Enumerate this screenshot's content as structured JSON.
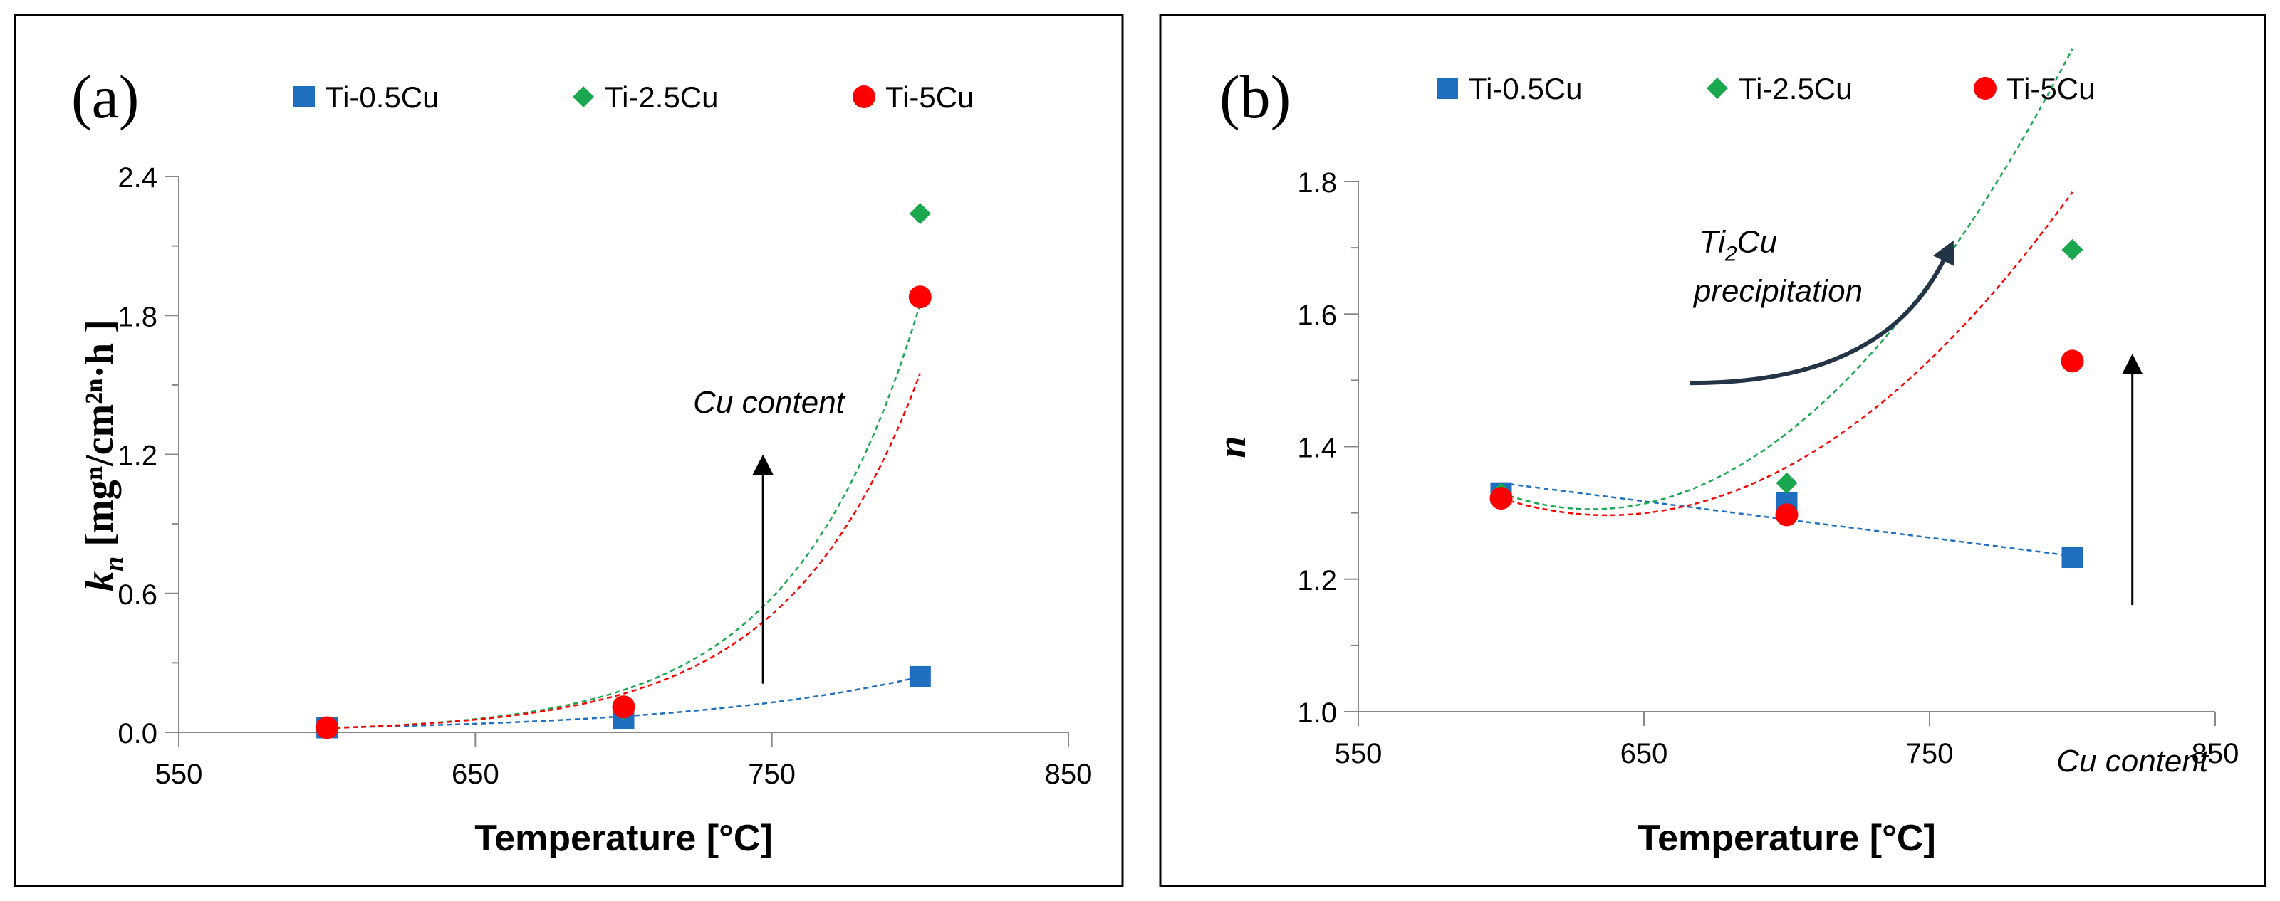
{
  "chart_data": [
    {
      "panel_label": "(a)",
      "type": "scatter",
      "title": "",
      "xlabel": "Temperature [°C]",
      "ylabel_main": "k",
      "ylabel_sub": "n",
      "ylabel_units": " [mgⁿ/cm²ⁿ·h ]",
      "xlim": [
        550,
        850
      ],
      "ylim": [
        0.0,
        2.4
      ],
      "xticks": [
        550,
        650,
        750,
        850
      ],
      "xtick_labels": [
        "550",
        "650",
        "750",
        "850"
      ],
      "yticks": [
        0.0,
        0.6,
        1.2,
        1.8,
        2.4
      ],
      "ytick_labels": [
        "0.0",
        "0.6",
        "1.2",
        "1.8",
        "2.4"
      ],
      "legend_position": "top",
      "series": [
        {
          "name": "Ti-0.5Cu",
          "marker": "square",
          "color": "#1f6fc0",
          "x": [
            600,
            700,
            800
          ],
          "values": [
            0.02,
            0.06,
            0.24
          ],
          "trend": {
            "type": "exp",
            "from": 600,
            "to": 800,
            "y0": 0.02,
            "y1": 0.24
          }
        },
        {
          "name": "Ti-2.5Cu",
          "marker": "diamond",
          "color": "#1aa84e",
          "x": [
            600,
            700,
            800
          ],
          "values": [
            0.02,
            0.1,
            2.24
          ],
          "trend": {
            "type": "exp",
            "from": 600,
            "to": 800,
            "y0": 0.018,
            "y1": 1.85
          }
        },
        {
          "name": "Ti-5Cu",
          "marker": "circle",
          "color": "#ff0000",
          "x": [
            600,
            700,
            800
          ],
          "values": [
            0.02,
            0.11,
            1.88
          ],
          "trend": {
            "type": "exp",
            "from": 600,
            "to": 800,
            "y0": 0.018,
            "y1": 1.55
          }
        }
      ],
      "annotations": [
        {
          "text": "Cu content",
          "x": 749,
          "y": 1.38
        }
      ],
      "arrows": [
        {
          "from": [
            747,
            0.21
          ],
          "to": [
            747,
            1.2
          ],
          "color": "#000000"
        }
      ]
    },
    {
      "panel_label": "(b)",
      "type": "scatter",
      "title": "",
      "xlabel": "Temperature [°C]",
      "ylabel": "n",
      "xlim": [
        550,
        850
      ],
      "ylim": [
        1.0,
        1.8
      ],
      "xticks": [
        550,
        650,
        750,
        850
      ],
      "xtick_labels": [
        "550",
        "650",
        "750",
        "850"
      ],
      "yticks": [
        1.0,
        1.2,
        1.4,
        1.6,
        1.8
      ],
      "ytick_labels": [
        "1.0",
        "1.2",
        "1.4",
        "1.6",
        "1.8"
      ],
      "legend_position": "top",
      "series": [
        {
          "name": "Ti-0.5Cu",
          "marker": "square",
          "color": "#1f6fc0",
          "x": [
            600,
            700,
            800
          ],
          "values": [
            1.33,
            1.315,
            1.233
          ],
          "trend": {
            "type": "poly",
            "coef": [
              1.345,
              -0.00055,
              0
            ]
          }
        },
        {
          "name": "Ti-2.5Cu",
          "marker": "diamond",
          "color": "#1aa84e",
          "x": [
            600,
            700,
            800
          ],
          "values": [
            1.33,
            1.345,
            1.697
          ],
          "trend": {
            "type": "poly",
            "coef": [
              1.33,
              -0.00155,
              2.45e-05
            ]
          }
        },
        {
          "name": "Ti-5Cu",
          "marker": "circle",
          "color": "#ff0000",
          "x": [
            600,
            700,
            800
          ],
          "values": [
            1.322,
            1.297,
            1.529
          ],
          "trend": {
            "type": "poly",
            "coef": [
              1.322,
              -0.00137,
              1.84e-05
            ]
          }
        }
      ],
      "annotations": [
        {
          "text": "Cu content",
          "x": 821,
          "y": 0.91
        },
        {
          "text": "precipitation",
          "x": 697,
          "y": 1.619
        }
      ],
      "annotation_ti2cu": {
        "main": "Ti",
        "sub": "2",
        "rest": "Cu",
        "x": 683,
        "y": 1.693
      },
      "arrows": [
        {
          "from": [
            821,
            1.161
          ],
          "to": [
            821,
            1.54
          ],
          "color": "#000000"
        }
      ],
      "curved_arrow": {
        "color": "#243447",
        "points": [
          [
            666,
            1.496
          ],
          [
            730,
            1.495
          ],
          [
            748,
            1.62
          ],
          [
            756,
            1.69
          ]
        ]
      }
    }
  ]
}
